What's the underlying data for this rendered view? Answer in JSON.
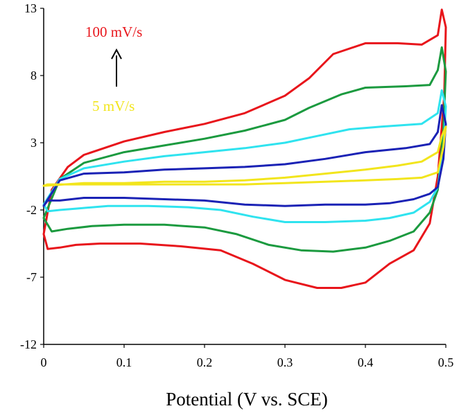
{
  "chart_data": {
    "type": "line",
    "title": "",
    "xlabel": "Potential (V vs. SCE)",
    "ylabel": "",
    "xlim": [
      0,
      0.5
    ],
    "ylim": [
      -12,
      13
    ],
    "x_ticks": [
      "0",
      "0.1",
      "0.2",
      "0.3",
      "0.4",
      "0.5"
    ],
    "y_ticks": [
      "13",
      "8",
      "3",
      "-2",
      "-7",
      "-12"
    ],
    "grid": false,
    "legend": "none",
    "annotations": {
      "top": {
        "text": "100 mV/s",
        "color": "#e8151b"
      },
      "bottom": {
        "text": "5 mV/s",
        "color": "#f2e51c"
      },
      "arrow": "up"
    },
    "series": [
      {
        "color": "#e8151b",
        "points": [
          [
            0,
            -3.8
          ],
          [
            0.01,
            -0.5
          ],
          [
            0.03,
            1.2
          ],
          [
            0.05,
            2.1
          ],
          [
            0.1,
            3.1
          ],
          [
            0.15,
            3.8
          ],
          [
            0.2,
            4.4
          ],
          [
            0.25,
            5.2
          ],
          [
            0.3,
            6.5
          ],
          [
            0.33,
            7.8
          ],
          [
            0.36,
            9.6
          ],
          [
            0.4,
            10.4
          ],
          [
            0.44,
            10.4
          ],
          [
            0.47,
            10.3
          ],
          [
            0.49,
            11
          ],
          [
            0.495,
            12.9
          ],
          [
            0.5,
            11.6
          ],
          [
            0.498,
            6.5
          ],
          [
            0.49,
            0.5
          ],
          [
            0.48,
            -3
          ],
          [
            0.46,
            -5
          ],
          [
            0.43,
            -6
          ],
          [
            0.4,
            -7.4
          ],
          [
            0.37,
            -7.8
          ],
          [
            0.34,
            -7.8
          ],
          [
            0.3,
            -7.2
          ],
          [
            0.26,
            -6
          ],
          [
            0.22,
            -5
          ],
          [
            0.17,
            -4.7
          ],
          [
            0.12,
            -4.5
          ],
          [
            0.07,
            -4.5
          ],
          [
            0.04,
            -4.6
          ],
          [
            0.02,
            -4.8
          ],
          [
            0.005,
            -4.9
          ]
        ]
      },
      {
        "color": "#1b9a3f",
        "points": [
          [
            0,
            -2.6
          ],
          [
            0.02,
            0.3
          ],
          [
            0.05,
            1.5
          ],
          [
            0.1,
            2.3
          ],
          [
            0.15,
            2.8
          ],
          [
            0.2,
            3.3
          ],
          [
            0.25,
            3.9
          ],
          [
            0.3,
            4.7
          ],
          [
            0.33,
            5.6
          ],
          [
            0.37,
            6.6
          ],
          [
            0.4,
            7.1
          ],
          [
            0.45,
            7.2
          ],
          [
            0.48,
            7.3
          ],
          [
            0.49,
            8.4
          ],
          [
            0.495,
            10.1
          ],
          [
            0.5,
            8.3
          ],
          [
            0.497,
            4
          ],
          [
            0.49,
            -0.5
          ],
          [
            0.48,
            -2.2
          ],
          [
            0.46,
            -3.6
          ],
          [
            0.43,
            -4.3
          ],
          [
            0.4,
            -4.8
          ],
          [
            0.36,
            -5.1
          ],
          [
            0.32,
            -5
          ],
          [
            0.28,
            -4.6
          ],
          [
            0.24,
            -3.8
          ],
          [
            0.2,
            -3.3
          ],
          [
            0.15,
            -3.1
          ],
          [
            0.1,
            -3.1
          ],
          [
            0.06,
            -3.2
          ],
          [
            0.03,
            -3.4
          ],
          [
            0.01,
            -3.6
          ]
        ]
      },
      {
        "color": "#2fe3ef",
        "points": [
          [
            0,
            -1.6
          ],
          [
            0.02,
            0.3
          ],
          [
            0.05,
            1.1
          ],
          [
            0.1,
            1.6
          ],
          [
            0.15,
            2
          ],
          [
            0.2,
            2.3
          ],
          [
            0.25,
            2.6
          ],
          [
            0.3,
            3
          ],
          [
            0.34,
            3.5
          ],
          [
            0.38,
            4
          ],
          [
            0.42,
            4.2
          ],
          [
            0.47,
            4.4
          ],
          [
            0.49,
            5.2
          ],
          [
            0.495,
            6.9
          ],
          [
            0.5,
            5.7
          ],
          [
            0.497,
            2.5
          ],
          [
            0.49,
            -0.3
          ],
          [
            0.48,
            -1.4
          ],
          [
            0.46,
            -2.2
          ],
          [
            0.43,
            -2.6
          ],
          [
            0.4,
            -2.8
          ],
          [
            0.35,
            -2.9
          ],
          [
            0.3,
            -2.9
          ],
          [
            0.26,
            -2.5
          ],
          [
            0.22,
            -2
          ],
          [
            0.18,
            -1.8
          ],
          [
            0.13,
            -1.7
          ],
          [
            0.08,
            -1.7
          ],
          [
            0.04,
            -1.9
          ],
          [
            0.02,
            -2
          ],
          [
            0.005,
            -2.1
          ]
        ]
      },
      {
        "color": "#1a22b5",
        "points": [
          [
            0,
            -1.7
          ],
          [
            0.02,
            0.2
          ],
          [
            0.05,
            0.7
          ],
          [
            0.1,
            0.8
          ],
          [
            0.15,
            1
          ],
          [
            0.2,
            1.1
          ],
          [
            0.25,
            1.2
          ],
          [
            0.3,
            1.4
          ],
          [
            0.35,
            1.8
          ],
          [
            0.4,
            2.3
          ],
          [
            0.45,
            2.6
          ],
          [
            0.48,
            2.9
          ],
          [
            0.49,
            3.8
          ],
          [
            0.495,
            5.8
          ],
          [
            0.5,
            4.4
          ],
          [
            0.497,
            1.8
          ],
          [
            0.49,
            -0.3
          ],
          [
            0.48,
            -0.8
          ],
          [
            0.46,
            -1.2
          ],
          [
            0.43,
            -1.5
          ],
          [
            0.4,
            -1.6
          ],
          [
            0.35,
            -1.6
          ],
          [
            0.3,
            -1.7
          ],
          [
            0.25,
            -1.6
          ],
          [
            0.2,
            -1.3
          ],
          [
            0.15,
            -1.2
          ],
          [
            0.1,
            -1.1
          ],
          [
            0.05,
            -1.1
          ],
          [
            0.02,
            -1.3
          ],
          [
            0.005,
            -1.3
          ]
        ]
      },
      {
        "color": "#f2e51c",
        "points": [
          [
            0,
            -0.2
          ],
          [
            0.05,
            0
          ],
          [
            0.1,
            0
          ],
          [
            0.15,
            0.1
          ],
          [
            0.2,
            0.1
          ],
          [
            0.25,
            0.2
          ],
          [
            0.3,
            0.4
          ],
          [
            0.35,
            0.7
          ],
          [
            0.4,
            1
          ],
          [
            0.44,
            1.3
          ],
          [
            0.47,
            1.6
          ],
          [
            0.49,
            2.3
          ],
          [
            0.495,
            3.5
          ],
          [
            0.5,
            4.2
          ],
          [
            0.497,
            2.7
          ],
          [
            0.49,
            0.8
          ],
          [
            0.47,
            0.4
          ],
          [
            0.44,
            0.3
          ],
          [
            0.4,
            0.2
          ],
          [
            0.35,
            0.1
          ],
          [
            0.3,
            0
          ],
          [
            0.25,
            -0.1
          ],
          [
            0.2,
            -0.1
          ],
          [
            0.15,
            -0.1
          ],
          [
            0.1,
            -0.1
          ],
          [
            0.05,
            -0.1
          ],
          [
            0.005,
            -0.1
          ]
        ]
      }
    ]
  }
}
